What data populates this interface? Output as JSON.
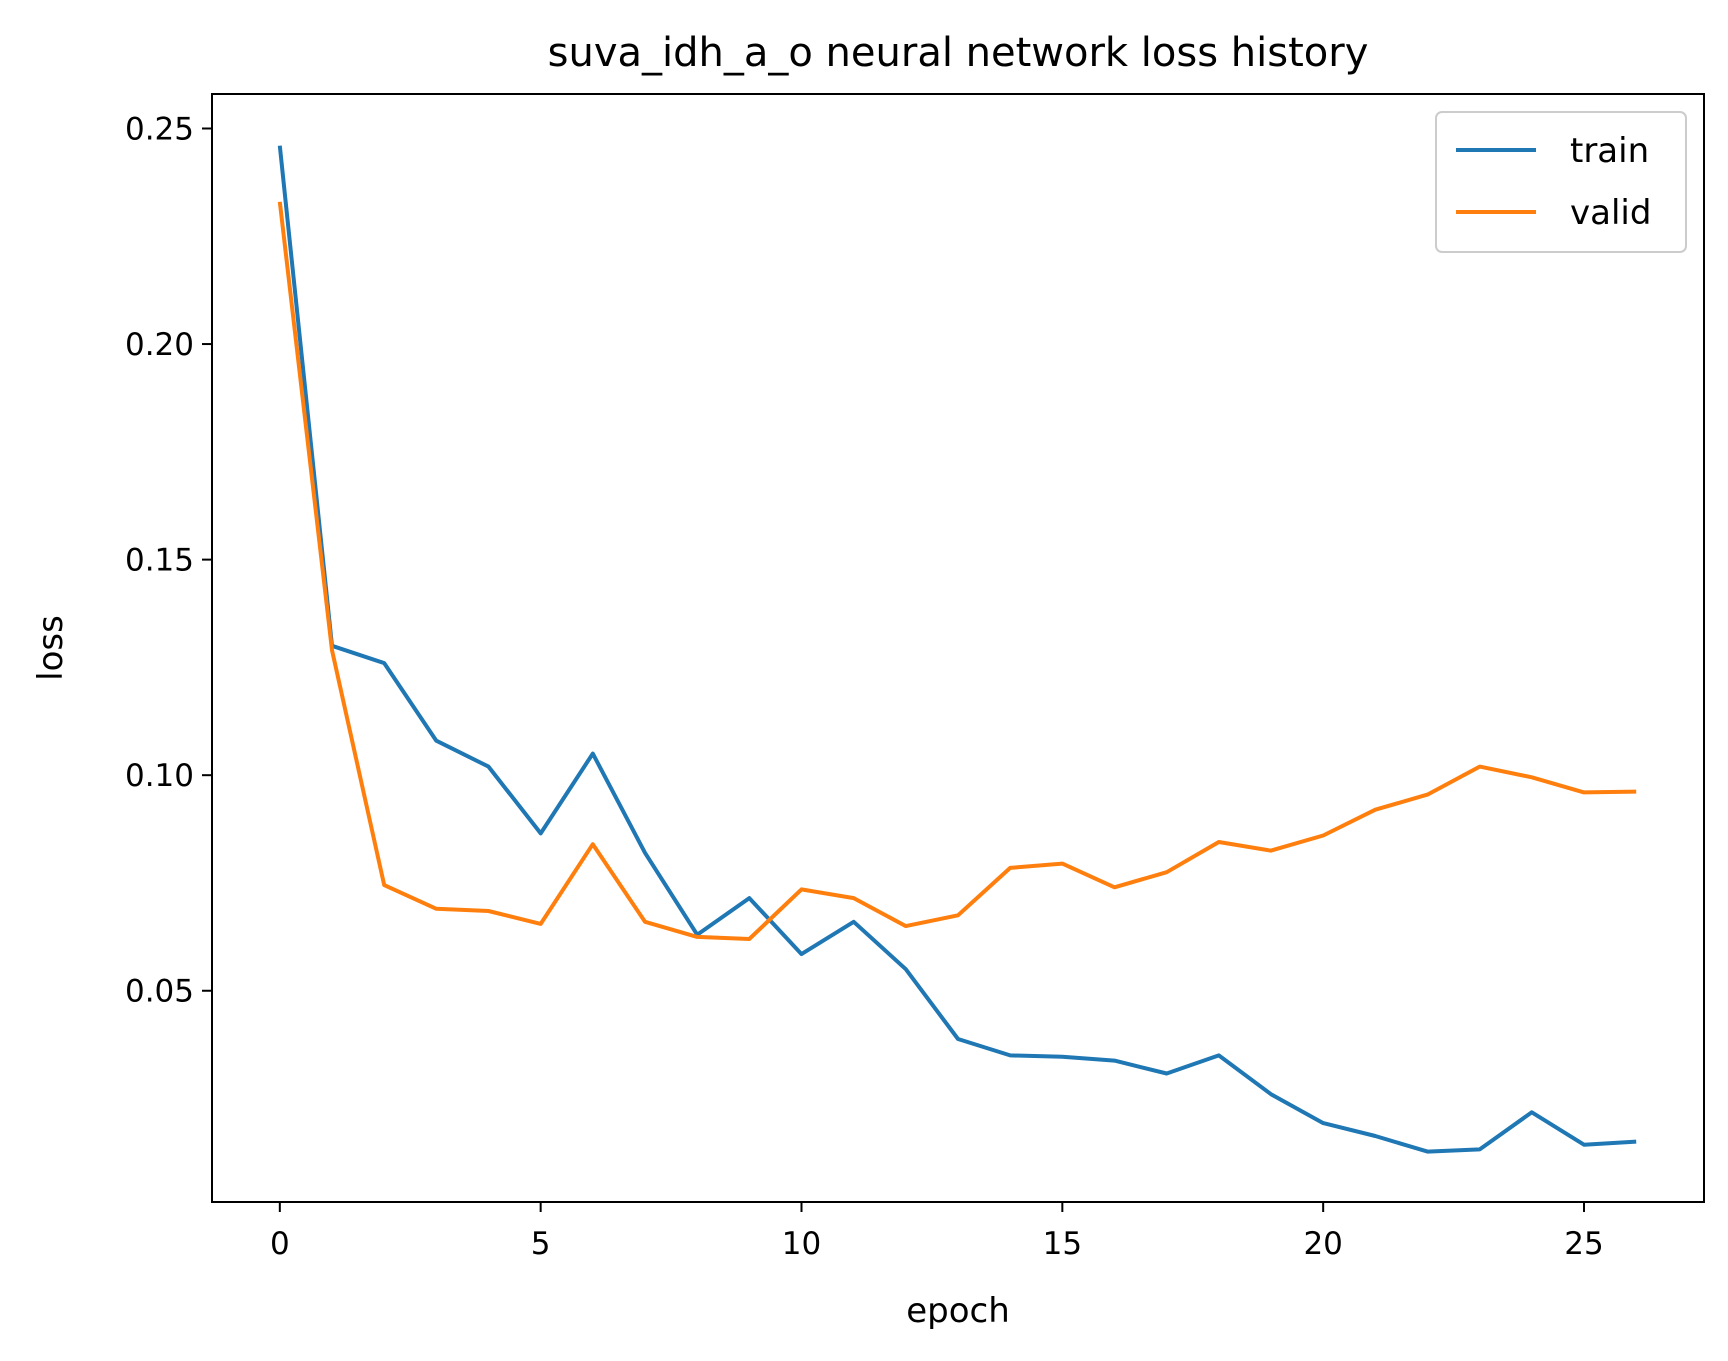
{
  "chart_data": {
    "type": "line",
    "title": "suva_idh_a_o neural network loss history",
    "xlabel": "epoch",
    "ylabel": "loss",
    "xlim": [
      -1.3,
      27.3
    ],
    "ylim": [
      0.001,
      0.258
    ],
    "xticks": [
      0,
      5,
      10,
      15,
      20,
      25
    ],
    "xtick_labels": [
      "0",
      "5",
      "10",
      "15",
      "20",
      "25"
    ],
    "yticks": [
      0.05,
      0.1,
      0.15,
      0.2,
      0.25
    ],
    "ytick_labels": [
      "0.05",
      "0.10",
      "0.15",
      "0.20",
      "0.25"
    ],
    "grid": false,
    "legend_position": "top-right",
    "x": [
      0,
      1,
      2,
      3,
      4,
      5,
      6,
      7,
      8,
      9,
      10,
      11,
      12,
      13,
      14,
      15,
      16,
      17,
      18,
      19,
      20,
      21,
      22,
      23,
      24,
      25,
      26
    ],
    "series": [
      {
        "name": "train",
        "color": "#1f77b4",
        "values": [
          0.246,
          0.13,
          0.126,
          0.108,
          0.102,
          0.0865,
          0.105,
          0.082,
          0.063,
          0.0715,
          0.0585,
          0.066,
          0.055,
          0.0388,
          0.035,
          0.0347,
          0.0338,
          0.0308,
          0.035,
          0.026,
          0.0193,
          0.0163,
          0.0127,
          0.0132,
          0.0218,
          0.0143,
          0.015
        ]
      },
      {
        "name": "valid",
        "color": "#ff7f0e",
        "values": [
          0.233,
          0.129,
          0.0745,
          0.069,
          0.0685,
          0.0655,
          0.084,
          0.066,
          0.0625,
          0.062,
          0.0735,
          0.0715,
          0.065,
          0.0675,
          0.0785,
          0.0795,
          0.074,
          0.0775,
          0.0845,
          0.0825,
          0.086,
          0.092,
          0.0955,
          0.102,
          0.0995,
          0.096,
          0.0962
        ]
      }
    ]
  }
}
